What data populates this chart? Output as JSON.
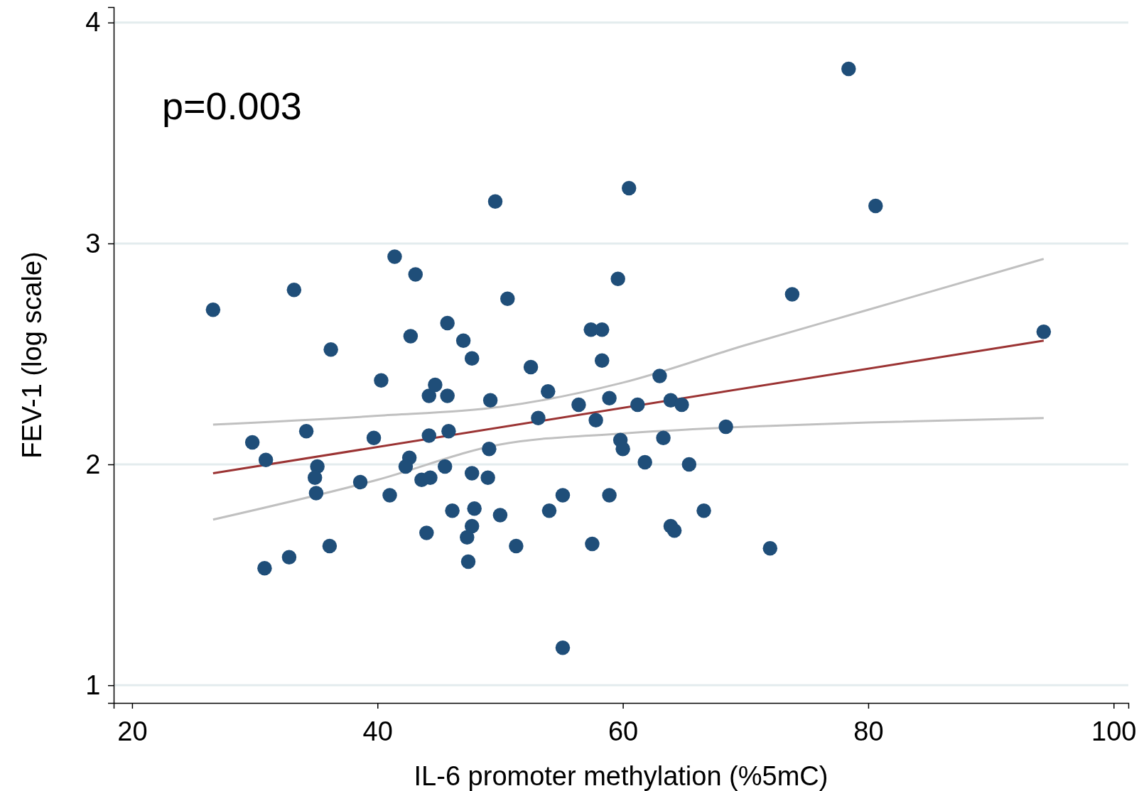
{
  "chart_data": {
    "type": "scatter",
    "xlabel": "IL-6 promoter methylation (%5mC)",
    "ylabel": "FEV-1 (log scale)",
    "annotations": [
      "p=0.003"
    ],
    "xlim": [
      18.5,
      101.2
    ],
    "xticks": [
      20,
      40,
      60,
      80,
      100
    ],
    "ylim": [
      0.92,
      4.07
    ],
    "yticks": [
      1,
      2,
      3,
      4
    ],
    "grid": "y",
    "series": [
      {
        "marker": "circle",
        "color": "#1f4e79",
        "x": [
          26.6,
          29.8,
          30.9,
          30.8,
          32.8,
          33.2,
          34.2,
          35.1,
          34.9,
          35.0,
          36.1,
          36.2,
          38.6,
          39.7,
          40.3,
          41.0,
          41.4,
          43.1,
          42.7,
          42.6,
          42.3,
          43.6,
          44.3,
          44.0,
          44.2,
          44.7,
          44.2,
          45.7,
          45.7,
          45.8,
          45.5,
          46.1,
          47.0,
          47.7,
          47.7,
          47.9,
          47.7,
          47.3,
          47.4,
          49.0,
          49.1,
          49.2,
          49.6,
          50.0,
          50.6,
          51.3,
          52.5,
          53.1,
          53.9,
          54.0,
          55.1,
          55.1,
          56.4,
          57.4,
          58.3,
          58.3,
          57.8,
          57.5,
          58.9,
          58.9,
          59.6,
          59.8,
          60.0,
          60.5,
          61.2,
          61.8,
          63.0,
          63.3,
          63.9,
          64.8,
          65.4,
          63.9,
          64.2,
          66.6,
          68.4,
          72.0,
          73.8,
          78.4,
          80.6,
          94.3
        ],
        "values": [
          2.7,
          2.1,
          2.02,
          1.53,
          1.58,
          2.79,
          2.15,
          1.99,
          1.94,
          1.87,
          1.63,
          2.52,
          1.92,
          2.12,
          2.38,
          1.86,
          2.94,
          2.86,
          2.58,
          2.03,
          1.99,
          1.93,
          1.94,
          1.69,
          2.31,
          2.36,
          2.13,
          2.64,
          2.31,
          2.15,
          1.99,
          1.79,
          2.56,
          2.48,
          1.96,
          1.8,
          1.72,
          1.67,
          1.56,
          1.94,
          2.07,
          2.29,
          3.19,
          1.77,
          2.75,
          1.63,
          2.44,
          2.21,
          2.33,
          1.79,
          1.86,
          1.17,
          2.27,
          2.61,
          2.61,
          2.47,
          2.2,
          1.64,
          2.3,
          1.86,
          2.84,
          2.11,
          2.07,
          3.25,
          2.27,
          2.01,
          2.4,
          2.12,
          2.29,
          2.27,
          2.0,
          1.72,
          1.7,
          1.79,
          2.17,
          1.62,
          2.77,
          3.79,
          3.17,
          2.6
        ]
      },
      {
        "type": "line",
        "color": "#9b3333",
        "x": [
          26.6,
          94.3
        ],
        "values": [
          1.96,
          2.56
        ]
      },
      {
        "type": "line",
        "color": "#c0c0c0",
        "x": [
          26.6,
          40,
          50,
          60,
          70,
          80,
          94.3
        ],
        "values": [
          2.18,
          2.22,
          2.26,
          2.37,
          2.54,
          2.7,
          2.93
        ]
      },
      {
        "type": "line",
        "color": "#c0c0c0",
        "x": [
          26.6,
          40,
          50,
          60,
          70,
          80,
          94.3
        ],
        "values": [
          1.75,
          1.93,
          2.09,
          2.14,
          2.17,
          2.19,
          2.21
        ]
      }
    ]
  }
}
